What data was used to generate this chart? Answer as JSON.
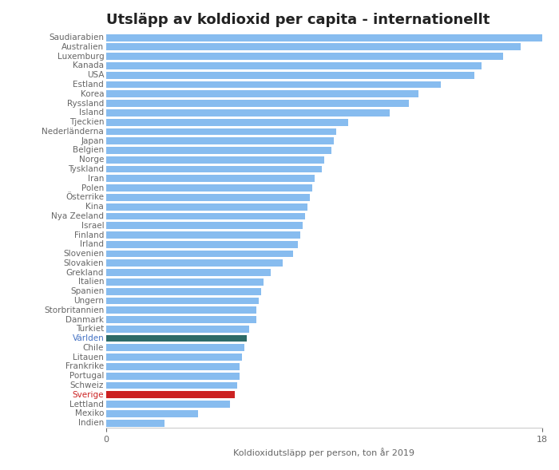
{
  "title": "Utsläpp av koldioxid per capita - internationellt",
  "xlabel": "Koldioxidutsläpp per person, ton år 2019",
  "xlim": [
    0,
    18
  ],
  "background_color": "#ffffff",
  "countries": [
    "Saudiarabien",
    "Australien",
    "Luxemburg",
    "Kanada",
    "USA",
    "Estland",
    "Korea",
    "Ryssland",
    "Island",
    "Tjeckien",
    "Nederländerna",
    "Japan",
    "Belgien",
    "Norge",
    "Tyskland",
    "Iran",
    "Polen",
    "Österrike",
    "Kina",
    "Nya Zeeland",
    "Israel",
    "Finland",
    "Irland",
    "Slovenien",
    "Slovakien",
    "Grekland",
    "Italien",
    "Spanien",
    "Ungern",
    "Storbritannien",
    "Danmark",
    "Turkiet",
    "Världen",
    "Chile",
    "Litauen",
    "Frankrike",
    "Portugal",
    "Schweiz",
    "Sverige",
    "Lettland",
    "Mexiko",
    "Indien"
  ],
  "values": [
    18.1,
    17.1,
    16.4,
    15.5,
    15.2,
    13.8,
    12.9,
    12.5,
    11.7,
    10.0,
    9.5,
    9.4,
    9.3,
    9.0,
    8.9,
    8.6,
    8.5,
    8.4,
    8.3,
    8.2,
    8.1,
    8.0,
    7.9,
    7.7,
    7.3,
    6.8,
    6.5,
    6.4,
    6.3,
    6.2,
    6.2,
    5.9,
    5.8,
    5.7,
    5.6,
    5.5,
    5.5,
    5.4,
    5.3,
    5.1,
    3.8,
    2.4
  ],
  "bar_color_default": "#87BCEF",
  "bar_color_varlden": "#2D6B68",
  "bar_color_sverige": "#CC2222",
  "label_color_default": "#666666",
  "label_color_varlden": "#4472C4",
  "label_color_sverige": "#CC2222",
  "title_fontsize": 13,
  "label_fontsize": 7.5,
  "tick_fontsize": 8
}
